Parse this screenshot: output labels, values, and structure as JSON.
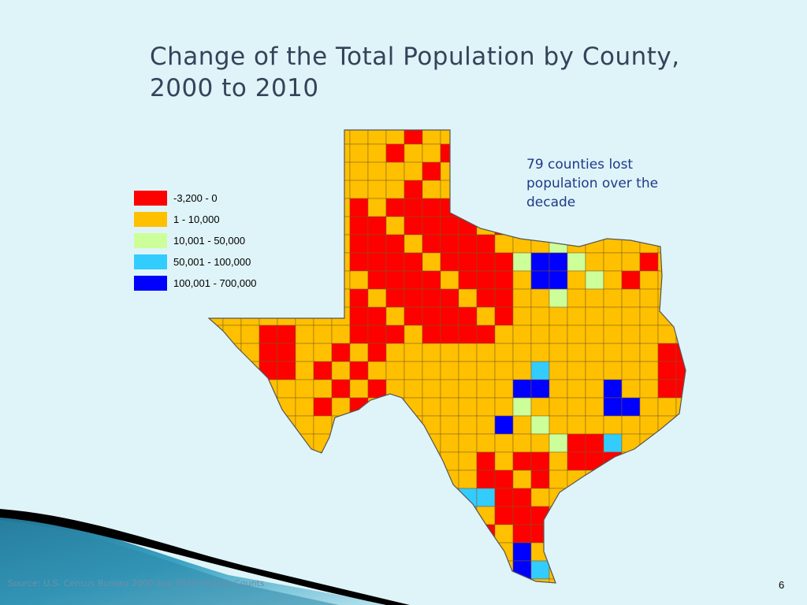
{
  "title": "Change of the Total Population by County,\n2000 to 2010",
  "legend": [
    {
      "label": "-3,200 - 0",
      "color": "#ff0000"
    },
    {
      "label": "1 - 10,000",
      "color": "#ffc000"
    },
    {
      "label": "10,001 - 50,000",
      "color": "#ccff99"
    },
    {
      "label": "50,001 - 100,000",
      "color": "#33ccff"
    },
    {
      "label": "100,001 - 700,000",
      "color": "#0000ff"
    }
  ],
  "annotation": "79 counties lost\npopulation over the\ndecade",
  "source": "Source: U.S. Census Bureau 2000  and  2010 Census Counts",
  "slide_number": "6"
}
